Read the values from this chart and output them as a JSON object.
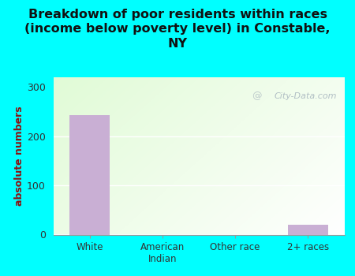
{
  "categories": [
    "White",
    "American\nIndian",
    "Other race",
    "2+ races"
  ],
  "values": [
    243,
    0,
    0,
    20
  ],
  "bar_color": "#c9afd4",
  "title": "Breakdown of poor residents within races\n(income below poverty level) in Constable,\nNY",
  "ylabel": "absolute numbers",
  "ylabel_color": "#8b1010",
  "ylim": [
    0,
    320
  ],
  "yticks": [
    0,
    100,
    200,
    300
  ],
  "background_color": "#00ffff",
  "title_fontsize": 11.5,
  "title_color": "#111111",
  "watermark": "City-Data.com",
  "watermark_color": "#aab8c0"
}
